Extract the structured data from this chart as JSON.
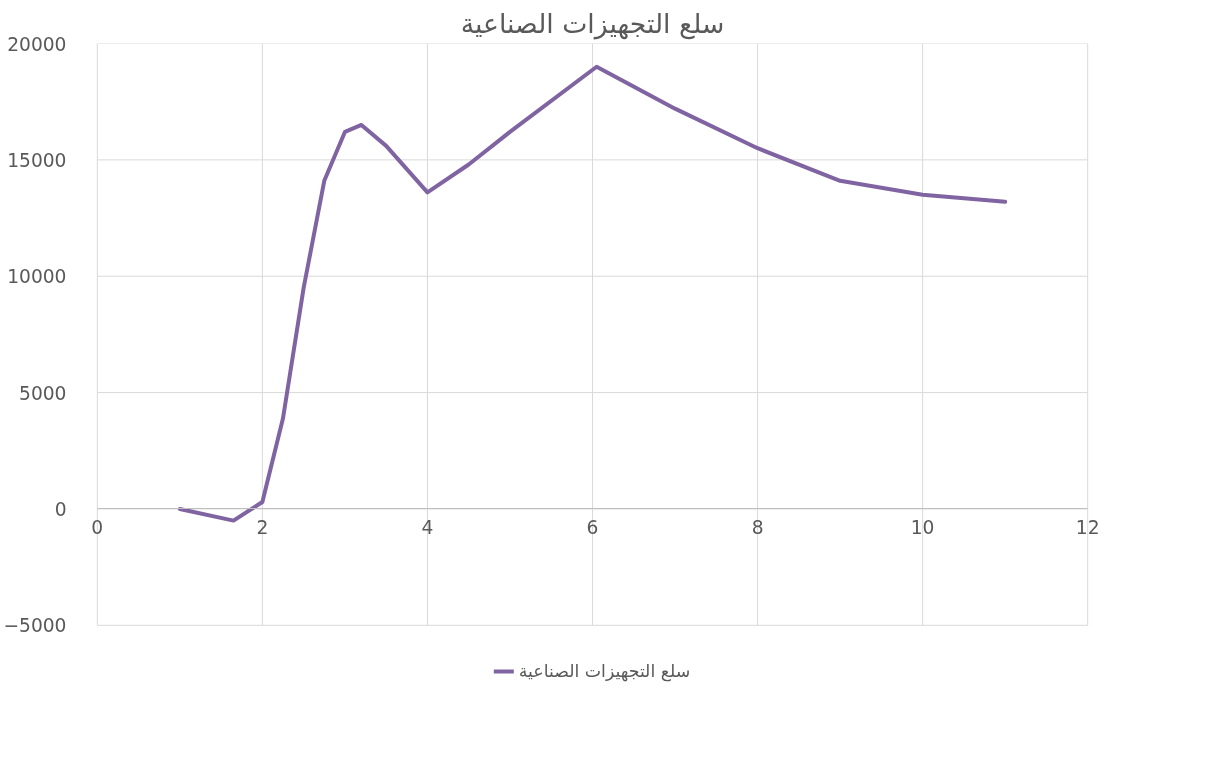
{
  "chart_data": {
    "type": "line",
    "title": "سلع التجهيزات الصناعية",
    "x": [
      1,
      1.65,
      2,
      2.25,
      2.5,
      2.75,
      3,
      3.2,
      3.5,
      4,
      4.5,
      5,
      6.05,
      7,
      8,
      9,
      10,
      11
    ],
    "series": [
      {
        "name": "سلع التجهيزات الصناعية",
        "color": "#8064a2",
        "values": [
          0,
          -500,
          300,
          3900,
          9500,
          14100,
          16200,
          16500,
          15600,
          13600,
          14800,
          16200,
          19000,
          17200,
          15500,
          14100,
          13500,
          13200
        ]
      }
    ],
    "xlim": [
      0,
      12
    ],
    "xticks": [
      0,
      2,
      4,
      6,
      8,
      10,
      12
    ],
    "ylim": [
      -5000,
      20000
    ],
    "yticks": [
      -5000,
      0,
      5000,
      10000,
      15000,
      20000
    ],
    "grid": true,
    "legend": "bottom",
    "marker": "none",
    "line_style": "solid"
  }
}
